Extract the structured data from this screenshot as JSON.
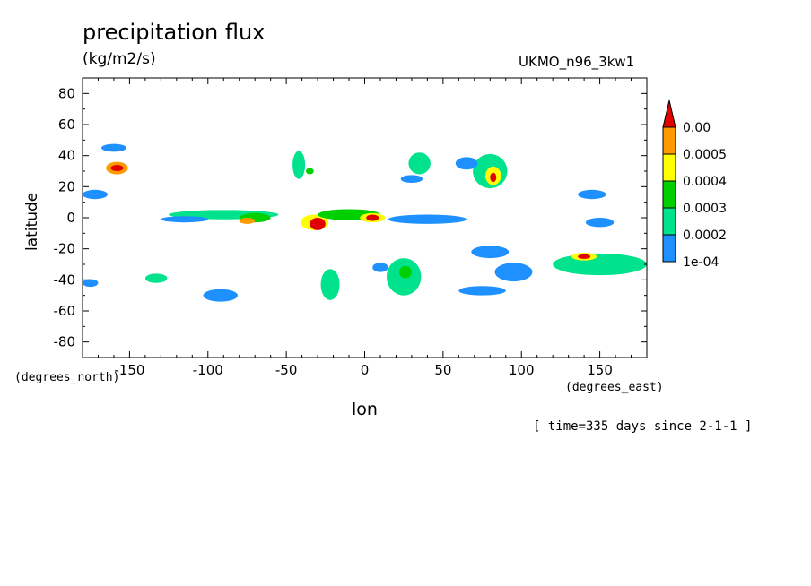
{
  "title": "precipitation flux",
  "units": "(kg/m2/s)",
  "model": "UKMO_n96_3kw1",
  "time_info": "[ time=335 days since 2-1-1 ]",
  "chart_data": {
    "type": "heatmap",
    "xlabel": "lon",
    "ylabel": "latitude",
    "x_units": "(degrees_east)",
    "y_units": "(degrees_north)",
    "xlim": [
      -180,
      180
    ],
    "ylim": [
      -90,
      90
    ],
    "x_ticks": [
      {
        "value": -150,
        "label": "-150"
      },
      {
        "value": -100,
        "label": "-100"
      },
      {
        "value": -50,
        "label": "-50"
      },
      {
        "value": 0,
        "label": "0"
      },
      {
        "value": 50,
        "label": "50"
      },
      {
        "value": 100,
        "label": "100"
      },
      {
        "value": 150,
        "label": "150"
      }
    ],
    "y_ticks": [
      {
        "value": 80,
        "label": "80"
      },
      {
        "value": 60,
        "label": "60"
      },
      {
        "value": 40,
        "label": "40"
      },
      {
        "value": 20,
        "label": "20"
      },
      {
        "value": 0,
        "label": "0"
      },
      {
        "value": -20,
        "label": "-20"
      },
      {
        "value": -40,
        "label": "-40"
      },
      {
        "value": -60,
        "label": "-60"
      },
      {
        "value": -80,
        "label": "-80"
      }
    ],
    "levels": [
      {
        "label": "1e-04",
        "color": "#1e90ff"
      },
      {
        "label": "0.0002",
        "color": "#00e38c"
      },
      {
        "label": "0.0003",
        "color": "#00d000"
      },
      {
        "label": "0.0004",
        "color": "#ffff00"
      },
      {
        "label": "0.0005",
        "color": "#ff9900"
      },
      {
        "label": "0.00",
        "color": "#e00000"
      }
    ],
    "regions": [
      {
        "lon": -158,
        "lat": 32,
        "w": 14,
        "h": 8,
        "level": 5
      },
      {
        "lon": -158,
        "lat": 32,
        "w": 8,
        "h": 4,
        "level": 6
      },
      {
        "lon": -172,
        "lat": 15,
        "w": 16,
        "h": 6,
        "level": 1
      },
      {
        "lon": -160,
        "lat": 45,
        "w": 16,
        "h": 5,
        "level": 1
      },
      {
        "lon": -175,
        "lat": -42,
        "w": 10,
        "h": 5,
        "level": 1
      },
      {
        "lon": -133,
        "lat": -39,
        "w": 14,
        "h": 6,
        "level": 2
      },
      {
        "lon": -90,
        "lat": 2,
        "w": 70,
        "h": 6,
        "level": 2
      },
      {
        "lon": -70,
        "lat": 0,
        "w": 20,
        "h": 6,
        "level": 3
      },
      {
        "lon": -75,
        "lat": -2,
        "w": 10,
        "h": 4,
        "level": 5
      },
      {
        "lon": -32,
        "lat": -3,
        "w": 18,
        "h": 10,
        "level": 4
      },
      {
        "lon": -30,
        "lat": -4,
        "w": 10,
        "h": 8,
        "level": 6
      },
      {
        "lon": -10,
        "lat": 2,
        "w": 40,
        "h": 7,
        "level": 3
      },
      {
        "lon": 5,
        "lat": 0,
        "w": 16,
        "h": 6,
        "level": 4
      },
      {
        "lon": 5,
        "lat": 0,
        "w": 8,
        "h": 4,
        "level": 6
      },
      {
        "lon": 40,
        "lat": -1,
        "w": 50,
        "h": 6,
        "level": 1
      },
      {
        "lon": -115,
        "lat": -1,
        "w": 30,
        "h": 4,
        "level": 1
      },
      {
        "lon": -42,
        "lat": 34,
        "w": 8,
        "h": 18,
        "level": 2
      },
      {
        "lon": -35,
        "lat": 30,
        "w": 5,
        "h": 4,
        "level": 3
      },
      {
        "lon": 35,
        "lat": 35,
        "w": 14,
        "h": 14,
        "level": 2
      },
      {
        "lon": 30,
        "lat": 25,
        "w": 14,
        "h": 5,
        "level": 1
      },
      {
        "lon": 80,
        "lat": 30,
        "w": 22,
        "h": 22,
        "level": 2
      },
      {
        "lon": 82,
        "lat": 27,
        "w": 10,
        "h": 12,
        "level": 4
      },
      {
        "lon": 82,
        "lat": 26,
        "w": 4,
        "h": 6,
        "level": 6
      },
      {
        "lon": 65,
        "lat": 35,
        "w": 14,
        "h": 8,
        "level": 1
      },
      {
        "lon": 145,
        "lat": 15,
        "w": 18,
        "h": 6,
        "level": 1
      },
      {
        "lon": 150,
        "lat": -3,
        "w": 18,
        "h": 6,
        "level": 1
      },
      {
        "lon": 150,
        "lat": -30,
        "w": 60,
        "h": 14,
        "level": 2
      },
      {
        "lon": 140,
        "lat": -25,
        "w": 16,
        "h": 5,
        "level": 4
      },
      {
        "lon": 140,
        "lat": -25,
        "w": 8,
        "h": 3,
        "level": 6
      },
      {
        "lon": 80,
        "lat": -22,
        "w": 24,
        "h": 8,
        "level": 1
      },
      {
        "lon": 95,
        "lat": -35,
        "w": 24,
        "h": 12,
        "level": 1
      },
      {
        "lon": 75,
        "lat": -47,
        "w": 30,
        "h": 6,
        "level": 1
      },
      {
        "lon": 25,
        "lat": -38,
        "w": 22,
        "h": 24,
        "level": 2
      },
      {
        "lon": 26,
        "lat": -35,
        "w": 8,
        "h": 8,
        "level": 3
      },
      {
        "lon": -22,
        "lat": -43,
        "w": 12,
        "h": 20,
        "level": 2
      },
      {
        "lon": -92,
        "lat": -50,
        "w": 22,
        "h": 8,
        "level": 1
      },
      {
        "lon": 10,
        "lat": -32,
        "w": 10,
        "h": 6,
        "level": 1
      }
    ]
  }
}
